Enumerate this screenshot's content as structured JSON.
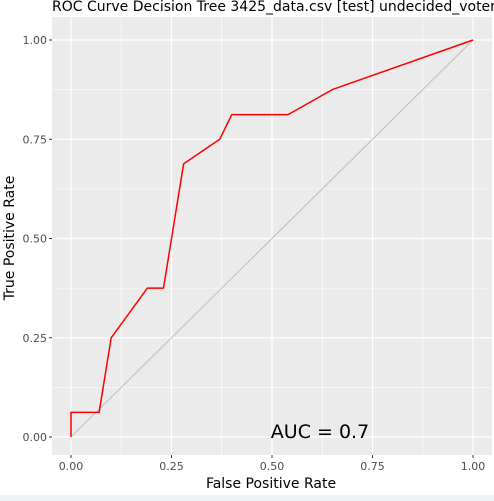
{
  "chart_data": {
    "type": "line",
    "title": "ROC Curve Decision Tree 3425_data.csv [test] undecided_voter",
    "xlabel": "False Positive Rate",
    "ylabel": "True Positive Rate",
    "xlim": [
      0,
      1
    ],
    "ylim": [
      0,
      1
    ],
    "xticks": [
      "0.00",
      "0.25",
      "0.50",
      "0.75",
      "1.00"
    ],
    "yticks": [
      "0.00",
      "0.25",
      "0.50",
      "0.75",
      "1.00"
    ],
    "grid": true,
    "series": [
      {
        "color": "#ff0000",
        "x": [
          0.0,
          0.0,
          0.07,
          0.07,
          0.1,
          0.19,
          0.23,
          0.28,
          0.37,
          0.4,
          0.54,
          0.65,
          1.0
        ],
        "y": [
          0.0,
          0.062,
          0.062,
          0.062,
          0.25,
          0.375,
          0.375,
          0.688,
          0.75,
          0.812,
          0.812,
          0.875,
          1.0
        ]
      },
      {
        "color": "#bebebe",
        "x": [
          0,
          1
        ],
        "y": [
          0,
          1
        ]
      }
    ],
    "annotation": "AUC = 0.7"
  }
}
